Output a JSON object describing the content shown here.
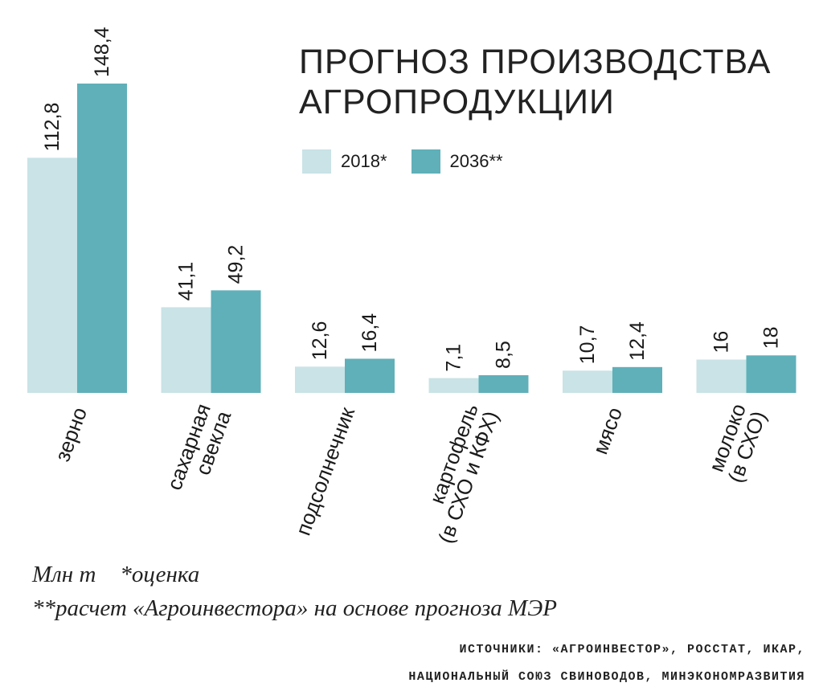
{
  "title_lines": [
    "ПРОГНОЗ ПРОИЗВОДСТВА",
    "АГРОПРОДУКЦИИ"
  ],
  "legend": [
    {
      "label": "2018*",
      "color": "#c9e3e6"
    },
    {
      "label": "2036**",
      "color": "#5fb0b9"
    }
  ],
  "notes": {
    "unit": "Млн т",
    "estimate": "*оценка",
    "calc": "**расчет «Агроинвестора» на основе прогноза МЭР"
  },
  "sources": [
    "ИСТОЧНИКИ: «АГРОИНВЕСТОР», РОССТАТ, ИКАР,",
    "НАЦИОНАЛЬНЫЙ СОЮЗ СВИНОВОДОВ, МИНЭКОНОМРАЗВИТИЯ"
  ],
  "chart_data": {
    "type": "bar",
    "title": "ПРОГНОЗ ПРОИЗВОДСТВА АГРОПРОДУКЦИИ",
    "ylabel": "Млн т",
    "ylim": [
      0,
      148.4
    ],
    "grid": false,
    "legend_position": "top-right",
    "categories": [
      [
        "зерно"
      ],
      [
        "сахарная",
        "свекла"
      ],
      [
        "подсолнечник"
      ],
      [
        "картофель",
        "(в СХО и КФХ)"
      ],
      [
        "мясо"
      ],
      [
        "молоко",
        "(в СХО)"
      ]
    ],
    "series": [
      {
        "name": "2018*",
        "color": "#c9e3e6",
        "values": [
          112.8,
          41.1,
          12.6,
          7.1,
          10.7,
          16
        ],
        "labels": [
          "112,8",
          "41,1",
          "12,6",
          "7,1",
          "10,7",
          "16"
        ]
      },
      {
        "name": "2036**",
        "color": "#5fb0b9",
        "values": [
          148.4,
          49.2,
          16.4,
          8.5,
          12.4,
          18
        ],
        "labels": [
          "148,4",
          "49,2",
          "16,4",
          "8,5",
          "12,4",
          "18"
        ]
      }
    ]
  }
}
